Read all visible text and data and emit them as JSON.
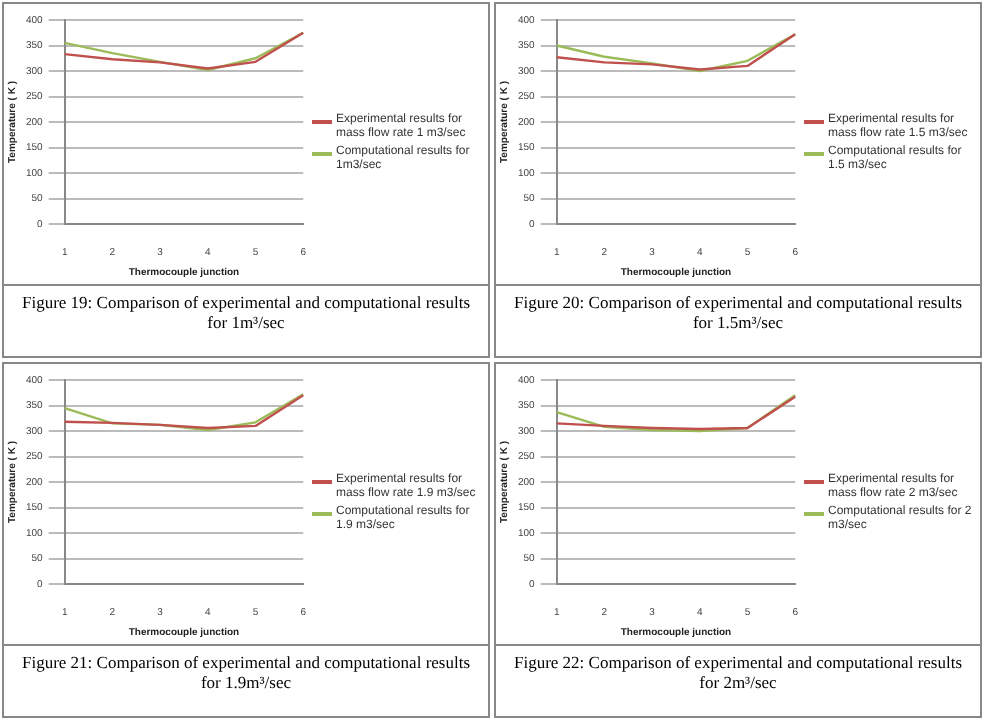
{
  "chart_data": [
    {
      "type": "line",
      "title": "Figure 19: Comparison of experimental and computational results for 1m³/sec",
      "xlabel": "Thermocouple junction",
      "ylabel": "Temperature ( K )",
      "categories": [
        "1",
        "2",
        "3",
        "4",
        "5",
        "6"
      ],
      "ylim": [
        0,
        400
      ],
      "yticks": [
        0,
        50,
        100,
        150,
        200,
        250,
        300,
        350,
        400
      ],
      "grid": "y",
      "legend": "right",
      "marker": "none",
      "series": [
        {
          "name": "Experimental results for mass flow rate 1 m3/sec",
          "color": "#c0504d",
          "values": [
            333,
            323,
            317,
            305,
            318,
            375
          ]
        },
        {
          "name": "Computational results for 1m3/sec",
          "color": "#9bbb59",
          "values": [
            355,
            335,
            318,
            302,
            325,
            375
          ]
        }
      ]
    },
    {
      "type": "line",
      "title": "Figure 20: Comparison of experimental and computational results for 1.5m³/sec",
      "xlabel": "Thermocouple junction",
      "ylabel": "Temperature ( K )",
      "categories": [
        "1",
        "2",
        "3",
        "4",
        "5",
        "6"
      ],
      "ylim": [
        0,
        400
      ],
      "yticks": [
        0,
        50,
        100,
        150,
        200,
        250,
        300,
        350,
        400
      ],
      "grid": "y",
      "legend": "right",
      "marker": "none",
      "series": [
        {
          "name": "Experimental results for mass flow rate 1.5 m3/sec",
          "color": "#c0504d",
          "values": [
            327,
            317,
            313,
            303,
            310,
            372
          ]
        },
        {
          "name": "Computational results for 1.5 m3/sec",
          "color": "#9bbb59",
          "values": [
            350,
            328,
            315,
            300,
            320,
            372
          ]
        }
      ]
    },
    {
      "type": "line",
      "title": "Figure 21: Comparison of experimental and computational results for 1.9m³/sec",
      "xlabel": "Thermocouple junction",
      "ylabel": "Temperature ( K )",
      "categories": [
        "1",
        "2",
        "3",
        "4",
        "5",
        "6"
      ],
      "ylim": [
        0,
        400
      ],
      "yticks": [
        0,
        50,
        100,
        150,
        200,
        250,
        300,
        350,
        400
      ],
      "grid": "y",
      "legend": "right",
      "marker": "none",
      "series": [
        {
          "name": "Experimental results for mass flow rate 1.9 m3/sec",
          "color": "#c0504d",
          "values": [
            318,
            316,
            312,
            306,
            310,
            370
          ]
        },
        {
          "name": "Computational results for 1.9 m3/sec",
          "color": "#9bbb59",
          "values": [
            345,
            315,
            312,
            302,
            317,
            372
          ]
        }
      ]
    },
    {
      "type": "line",
      "title": "Figure 22: Comparison of experimental and computational results for 2m³/sec",
      "xlabel": "Thermocouple junction",
      "ylabel": "Temperature ( K )",
      "categories": [
        "1",
        "2",
        "3",
        "4",
        "5",
        "6"
      ],
      "ylim": [
        0,
        400
      ],
      "yticks": [
        0,
        50,
        100,
        150,
        200,
        250,
        300,
        350,
        400
      ],
      "grid": "y",
      "legend": "right",
      "marker": "none",
      "series": [
        {
          "name": "Experimental results for mass flow rate 2 m3/sec",
          "color": "#c0504d",
          "values": [
            315,
            310,
            306,
            304,
            306,
            367
          ]
        },
        {
          "name": "Computational results for 2 m3/sec",
          "color": "#9bbb59",
          "values": [
            337,
            308,
            302,
            300,
            306,
            370
          ]
        }
      ]
    }
  ]
}
